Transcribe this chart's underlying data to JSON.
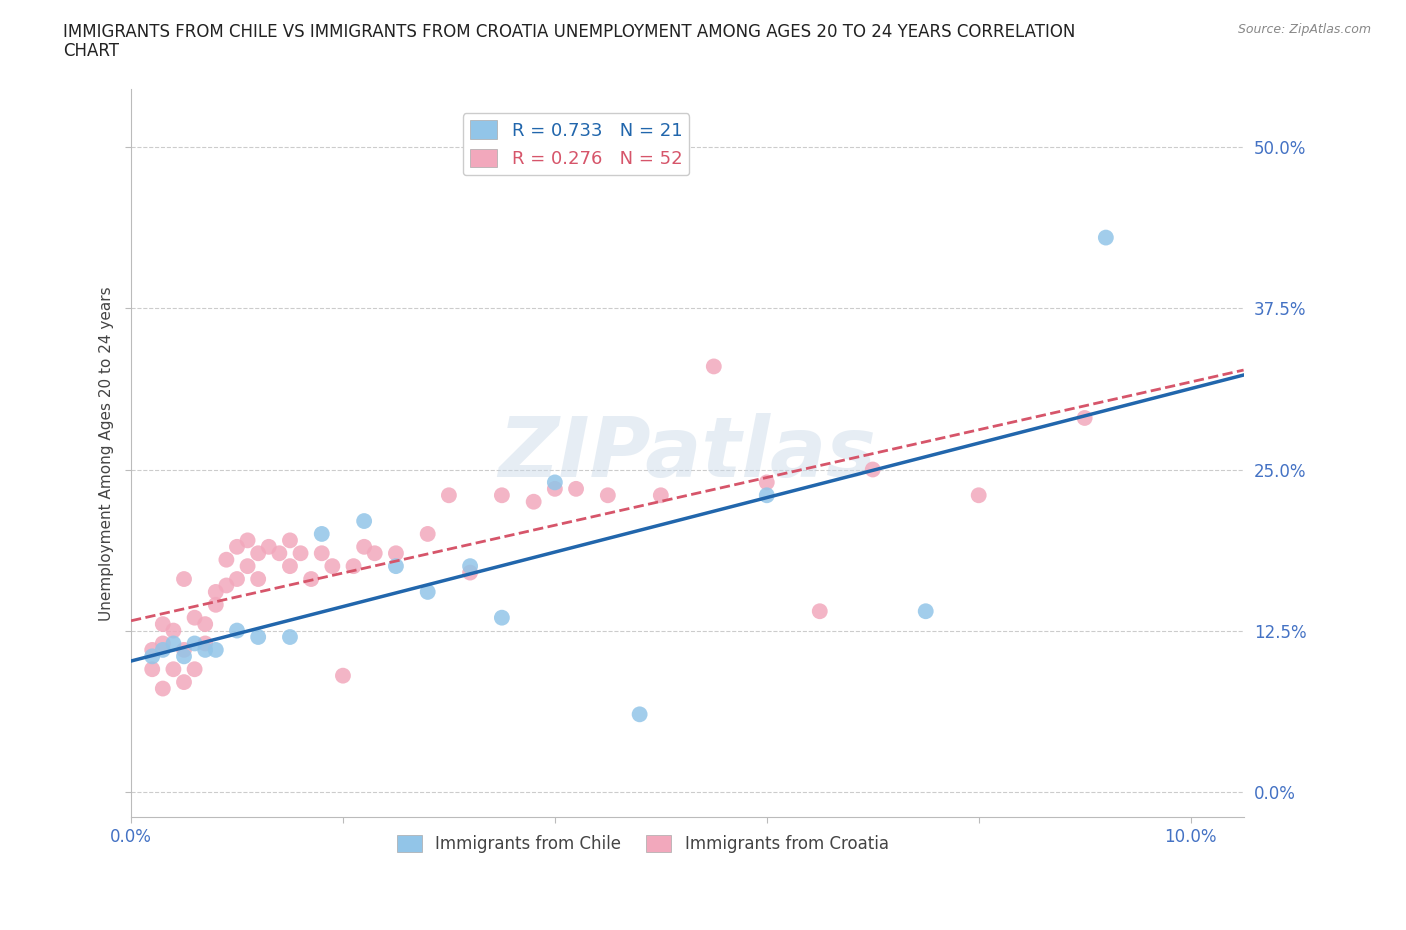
{
  "title_line1": "IMMIGRANTS FROM CHILE VS IMMIGRANTS FROM CROATIA UNEMPLOYMENT AMONG AGES 20 TO 24 YEARS CORRELATION",
  "title_line2": "CHART",
  "source": "Source: ZipAtlas.com",
  "ylabel": "Unemployment Among Ages 20 to 24 years",
  "xlabel": "",
  "xlim": [
    0.0,
    0.105
  ],
  "ylim": [
    -0.02,
    0.545
  ],
  "yticks": [
    0.0,
    0.125,
    0.25,
    0.375,
    0.5
  ],
  "ytick_labels": [
    "0.0%",
    "12.5%",
    "25.0%",
    "37.5%",
    "50.0%"
  ],
  "xticks": [
    0.0,
    0.02,
    0.04,
    0.06,
    0.08,
    0.1
  ],
  "xtick_labels": [
    "0.0%",
    "",
    "",
    "",
    "",
    "10.0%"
  ],
  "chile_color": "#92C5E8",
  "croatia_color": "#F2A8BC",
  "chile_line_color": "#2166AC",
  "croatia_line_color": "#D6556A",
  "tick_label_color": "#4472C4",
  "background_color": "#FFFFFF",
  "grid_color": "#CCCCCC",
  "R_chile": 0.733,
  "N_chile": 21,
  "R_croatia": 0.276,
  "N_croatia": 52,
  "legend_label_chile": "Immigrants from Chile",
  "legend_label_croatia": "Immigrants from Croatia",
  "watermark": "ZIPatlas",
  "chile_x": [
    0.002,
    0.003,
    0.004,
    0.005,
    0.006,
    0.007,
    0.008,
    0.01,
    0.012,
    0.015,
    0.018,
    0.022,
    0.025,
    0.028,
    0.032,
    0.035,
    0.04,
    0.048,
    0.06,
    0.075,
    0.092
  ],
  "chile_y": [
    0.105,
    0.11,
    0.115,
    0.105,
    0.115,
    0.11,
    0.11,
    0.125,
    0.12,
    0.12,
    0.2,
    0.21,
    0.175,
    0.155,
    0.175,
    0.135,
    0.24,
    0.06,
    0.23,
    0.14,
    0.43
  ],
  "croatia_x": [
    0.002,
    0.002,
    0.003,
    0.003,
    0.003,
    0.004,
    0.004,
    0.005,
    0.005,
    0.005,
    0.006,
    0.006,
    0.007,
    0.007,
    0.008,
    0.008,
    0.009,
    0.009,
    0.01,
    0.01,
    0.011,
    0.011,
    0.012,
    0.012,
    0.013,
    0.014,
    0.015,
    0.015,
    0.016,
    0.017,
    0.018,
    0.019,
    0.02,
    0.021,
    0.022,
    0.023,
    0.025,
    0.028,
    0.03,
    0.032,
    0.035,
    0.038,
    0.04,
    0.042,
    0.045,
    0.05,
    0.055,
    0.06,
    0.065,
    0.07,
    0.08,
    0.09
  ],
  "croatia_y": [
    0.095,
    0.11,
    0.115,
    0.13,
    0.08,
    0.095,
    0.125,
    0.11,
    0.165,
    0.085,
    0.095,
    0.135,
    0.13,
    0.115,
    0.155,
    0.145,
    0.18,
    0.16,
    0.165,
    0.19,
    0.195,
    0.175,
    0.185,
    0.165,
    0.19,
    0.185,
    0.195,
    0.175,
    0.185,
    0.165,
    0.185,
    0.175,
    0.09,
    0.175,
    0.19,
    0.185,
    0.185,
    0.2,
    0.23,
    0.17,
    0.23,
    0.225,
    0.235,
    0.235,
    0.23,
    0.23,
    0.33,
    0.24,
    0.14,
    0.25,
    0.23,
    0.29
  ]
}
